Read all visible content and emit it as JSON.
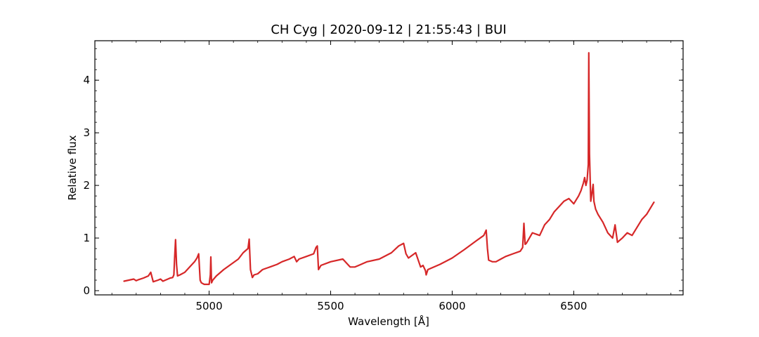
{
  "chart_data": {
    "type": "line",
    "title": "CH Cyg | 2020-09-12 | 21:55:43 | BUI",
    "xlabel": "Wavelength [Å]",
    "ylabel": "Relative flux",
    "xlim": [
      4530,
      6950
    ],
    "ylim": [
      -0.08,
      4.75
    ],
    "x_ticks": [
      5000,
      5500,
      6000,
      6500
    ],
    "y_ticks": [
      0,
      1,
      2,
      3,
      4
    ],
    "grid": false,
    "series": [
      {
        "color": "#d62728",
        "x": [
          4650,
          4670,
          4690,
          4700,
          4710,
          4730,
          4750,
          4760,
          4770,
          4790,
          4800,
          4810,
          4820,
          4830,
          4840,
          4850,
          4855,
          4858,
          4862,
          4866,
          4870,
          4880,
          4900,
          4920,
          4940,
          4950,
          4957,
          4963,
          4968,
          4980,
          5000,
          5005,
          5007,
          5010,
          5015,
          5030,
          5060,
          5090,
          5120,
          5140,
          5150,
          5160,
          5165,
          5170,
          5178,
          5185,
          5200,
          5220,
          5250,
          5280,
          5300,
          5330,
          5350,
          5360,
          5370,
          5400,
          5430,
          5440,
          5445,
          5450,
          5460,
          5500,
          5550,
          5580,
          5600,
          5650,
          5700,
          5750,
          5780,
          5800,
          5810,
          5820,
          5850,
          5870,
          5880,
          5890,
          5893,
          5900,
          5950,
          6000,
          6050,
          6100,
          6130,
          6140,
          6145,
          6150,
          6165,
          6180,
          6200,
          6220,
          6250,
          6280,
          6290,
          6295,
          6300,
          6305,
          6330,
          6360,
          6380,
          6400,
          6420,
          6440,
          6460,
          6480,
          6500,
          6520,
          6530,
          6540,
          6545,
          6550,
          6555,
          6560,
          6562,
          6565,
          6570,
          6575,
          6580,
          6583,
          6590,
          6600,
          6620,
          6640,
          6660,
          6670,
          6680,
          6700,
          6720,
          6740,
          6760,
          6780,
          6800,
          6830
        ],
        "y": [
          0.18,
          0.2,
          0.22,
          0.19,
          0.21,
          0.24,
          0.28,
          0.35,
          0.17,
          0.2,
          0.22,
          0.18,
          0.2,
          0.22,
          0.24,
          0.25,
          0.3,
          0.6,
          0.97,
          0.5,
          0.28,
          0.3,
          0.35,
          0.45,
          0.55,
          0.62,
          0.7,
          0.2,
          0.15,
          0.12,
          0.12,
          0.3,
          0.64,
          0.15,
          0.2,
          0.28,
          0.4,
          0.5,
          0.6,
          0.72,
          0.76,
          0.8,
          0.98,
          0.4,
          0.25,
          0.3,
          0.32,
          0.4,
          0.45,
          0.5,
          0.55,
          0.6,
          0.65,
          0.55,
          0.6,
          0.65,
          0.7,
          0.82,
          0.85,
          0.4,
          0.48,
          0.55,
          0.6,
          0.45,
          0.45,
          0.55,
          0.6,
          0.72,
          0.85,
          0.9,
          0.7,
          0.62,
          0.72,
          0.45,
          0.48,
          0.38,
          0.3,
          0.4,
          0.5,
          0.62,
          0.78,
          0.95,
          1.05,
          1.15,
          0.8,
          0.58,
          0.55,
          0.55,
          0.6,
          0.65,
          0.7,
          0.75,
          0.82,
          1.28,
          0.88,
          0.9,
          1.1,
          1.05,
          1.25,
          1.35,
          1.5,
          1.6,
          1.7,
          1.75,
          1.65,
          1.8,
          1.9,
          2.05,
          2.15,
          2.0,
          2.1,
          2.4,
          4.52,
          2.6,
          1.7,
          1.85,
          2.02,
          1.7,
          1.55,
          1.45,
          1.3,
          1.1,
          1.0,
          1.25,
          0.92,
          1.0,
          1.1,
          1.05,
          1.2,
          1.35,
          1.45,
          1.68
        ]
      }
    ]
  }
}
